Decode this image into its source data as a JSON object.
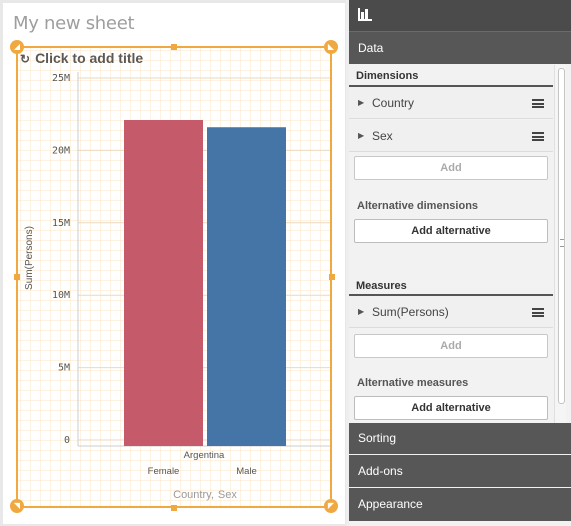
{
  "sheet": {
    "title": "My new sheet",
    "chart_title_placeholder": "Click to add title",
    "x_axis_title_left": "Country",
    "x_axis_title_sep": ",",
    "x_axis_title_right": "Sex"
  },
  "chart_data": {
    "type": "bar",
    "title": "",
    "ylabel": "Sum(Persons)",
    "xlabel": "Country, Sex",
    "group_label": "Argentina",
    "categories": [
      "Female",
      "Male"
    ],
    "values": [
      22100000,
      21600000
    ],
    "colors": [
      "#c55a6b",
      "#4574a6"
    ],
    "ylim": [
      0,
      25000000
    ],
    "yticks": [
      {
        "value": 0,
        "label": "0"
      },
      {
        "value": 5000000,
        "label": "5M"
      },
      {
        "value": 10000000,
        "label": "10M"
      },
      {
        "value": 15000000,
        "label": "15M"
      },
      {
        "value": 20000000,
        "label": "20M"
      },
      {
        "value": 25000000,
        "label": "25M"
      }
    ],
    "grid": true,
    "legend": "none"
  },
  "panel": {
    "top_icon": "bar-chart-icon",
    "data_tab": "Data",
    "dimensions_header": "Dimensions",
    "dimensions": [
      "Country",
      "Sex"
    ],
    "add_label": "Add",
    "alt_dimensions_header": "Alternative dimensions",
    "add_alternative_label": "Add alternative",
    "measures_header": "Measures",
    "measures": [
      "Sum(Persons)"
    ],
    "alt_measures_header": "Alternative measures",
    "sections": [
      "Sorting",
      "Add-ons",
      "Appearance"
    ]
  },
  "colors": {
    "accent_orange": "#f0a840",
    "female_bar": "#c55a6b",
    "male_bar": "#4574a6",
    "panel_dark": "#575757"
  }
}
